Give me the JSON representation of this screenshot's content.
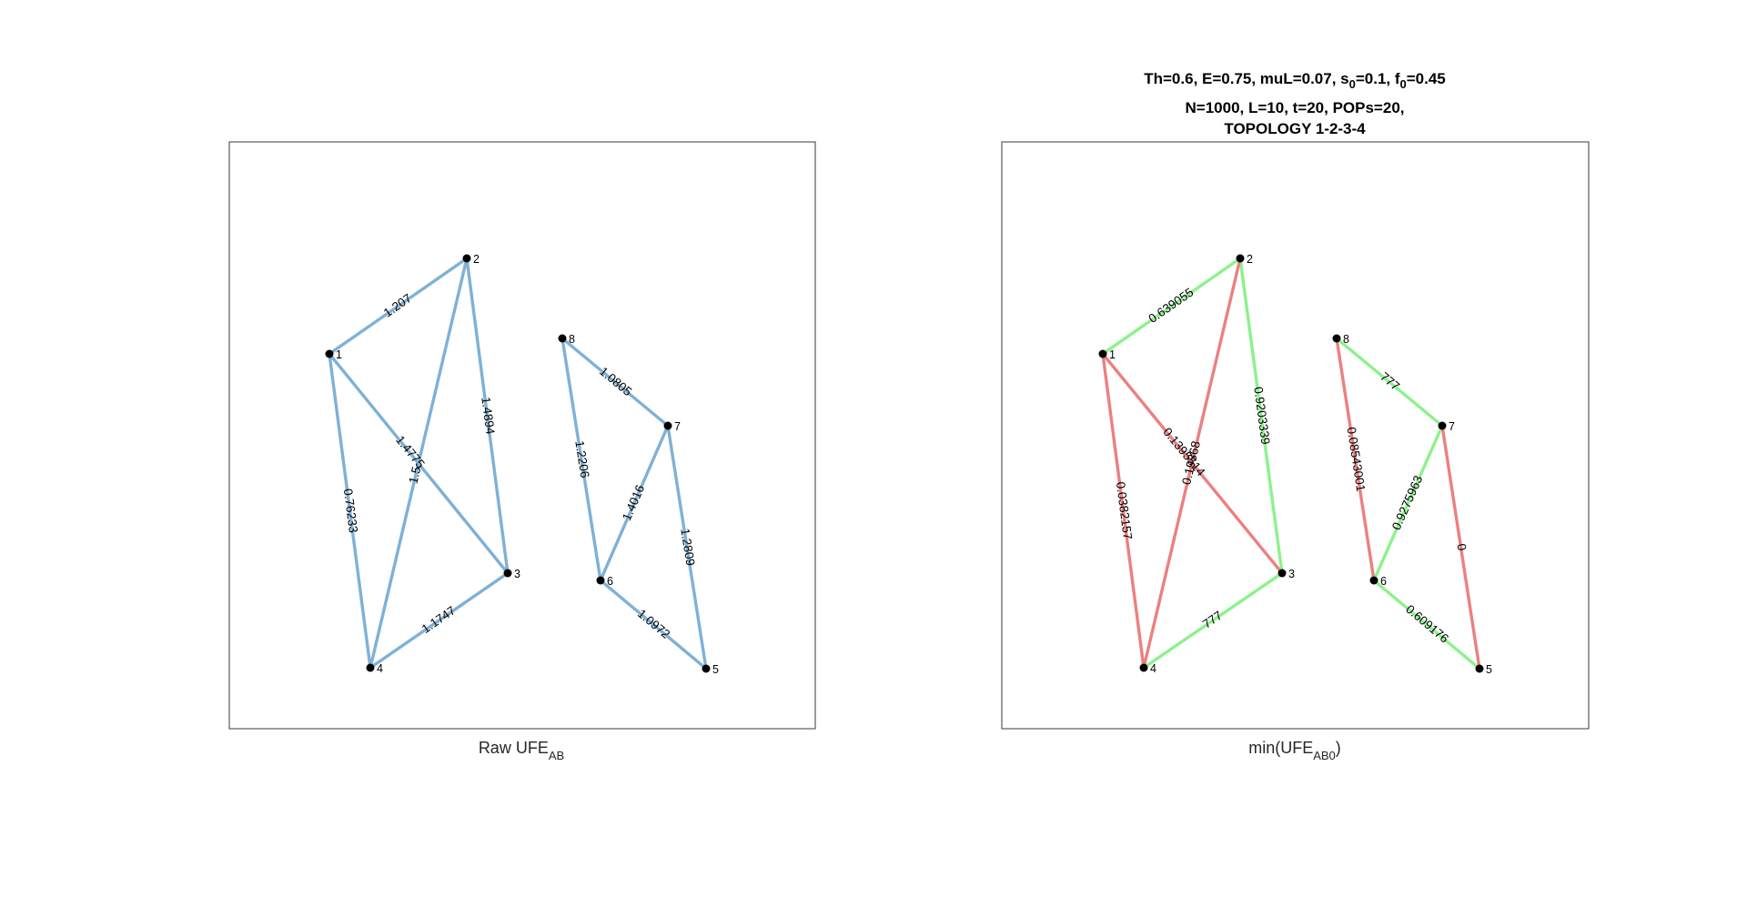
{
  "colors": {
    "raw_edge": "#7fb1d6",
    "high_edge": "#8cf28c",
    "low_edge": "#ec8080",
    "node": "#000000"
  },
  "title": {
    "line1_parts": [
      "Th=0.6, E=0.75, muL=0.07, s",
      "0",
      "=0.1, f",
      "0",
      "=0.45"
    ],
    "line2": "N=1000, L=10, t=20,  POPs=20,",
    "line3": "TOPOLOGY 1-2-3-4"
  },
  "panels": [
    {
      "label_main": "Raw UFE",
      "label_sub": "AB",
      "label_suffix": ""
    },
    {
      "label_main": "min(UFE",
      "label_sub": "AB0",
      "label_suffix": ")"
    }
  ],
  "graphs": [
    {
      "nodes": [
        "1",
        "2",
        "3",
        "4",
        "5",
        "6",
        "7",
        "8"
      ],
      "edges": [
        {
          "from": "1",
          "to": "2",
          "label": "1.207",
          "color": "raw"
        },
        {
          "from": "1",
          "to": "3",
          "label": "1.4775",
          "color": "raw"
        },
        {
          "from": "1",
          "to": "4",
          "label": "0.76233",
          "color": "raw"
        },
        {
          "from": "2",
          "to": "3",
          "label": "1.4894",
          "color": "raw"
        },
        {
          "from": "2",
          "to": "4",
          "label": "1.5",
          "color": "raw"
        },
        {
          "from": "3",
          "to": "4",
          "label": "1.1747",
          "color": "raw"
        },
        {
          "from": "8",
          "to": "7",
          "label": "1.0805",
          "color": "raw"
        },
        {
          "from": "8",
          "to": "6",
          "label": "1.2206",
          "color": "raw"
        },
        {
          "from": "6",
          "to": "7",
          "label": "1.4016",
          "color": "raw"
        },
        {
          "from": "7",
          "to": "5",
          "label": "1.2809",
          "color": "raw"
        },
        {
          "from": "6",
          "to": "5",
          "label": "1.0972",
          "color": "raw"
        }
      ]
    },
    {
      "nodes": [
        "1",
        "2",
        "3",
        "4",
        "5",
        "6",
        "7",
        "8"
      ],
      "edges": [
        {
          "from": "1",
          "to": "2",
          "label": "0.639055",
          "color": "high"
        },
        {
          "from": "1",
          "to": "3",
          "label": "0.1395514",
          "color": "low"
        },
        {
          "from": "1",
          "to": "4",
          "label": "0.0382157",
          "color": "low"
        },
        {
          "from": "2",
          "to": "3",
          "label": "0.9203339",
          "color": "high"
        },
        {
          "from": "2",
          "to": "4",
          "label": "0.19368",
          "color": "low"
        },
        {
          "from": "3",
          "to": "4",
          "label": "777",
          "color": "high"
        },
        {
          "from": "8",
          "to": "7",
          "label": "777",
          "color": "high"
        },
        {
          "from": "8",
          "to": "6",
          "label": "0.08543001",
          "color": "low"
        },
        {
          "from": "6",
          "to": "7",
          "label": "0.9275963",
          "color": "high"
        },
        {
          "from": "7",
          "to": "5",
          "label": "0",
          "color": "low"
        },
        {
          "from": "6",
          "to": "5",
          "label": "0.609176",
          "color": "high"
        }
      ]
    }
  ]
}
